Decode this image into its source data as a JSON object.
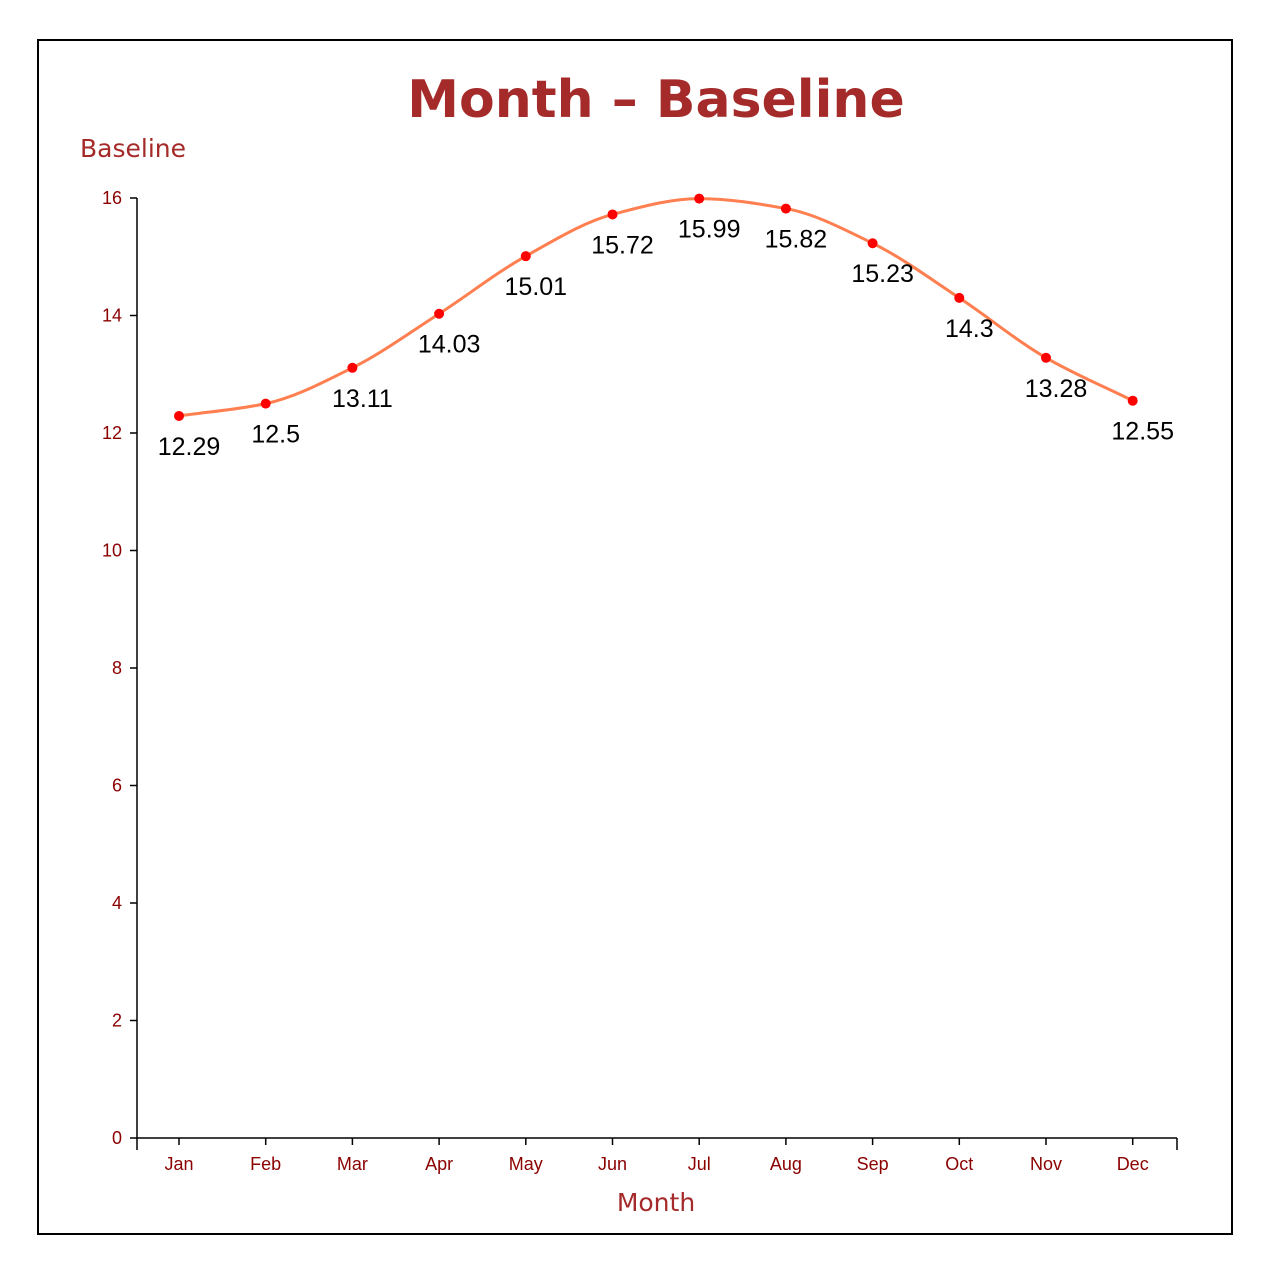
{
  "chart_data": {
    "type": "line",
    "title": "Month – Baseline",
    "xlabel": "Month",
    "ylabel": "Baseline",
    "categories": [
      "Jan",
      "Feb",
      "Mar",
      "Apr",
      "May",
      "Jun",
      "Jul",
      "Aug",
      "Sep",
      "Oct",
      "Nov",
      "Dec"
    ],
    "series": [
      {
        "values": [
          12.29,
          12.5,
          13.11,
          14.03,
          15.01,
          15.72,
          15.99,
          15.82,
          15.23,
          14.3,
          13.28,
          12.55
        ]
      }
    ],
    "ylim": [
      0,
      16
    ],
    "yticks": [
      0,
      2,
      4,
      6,
      8,
      10,
      12,
      14,
      16
    ],
    "grid": false,
    "legend": "none",
    "curve": "smooth",
    "colors": {
      "line": "#ff7f50",
      "point": "#ff0000",
      "title": "#a52a2a",
      "axis_title": "#a52a2a",
      "tick_label": "#8b0000",
      "data_label": "#000000",
      "frame": "#000000"
    }
  }
}
